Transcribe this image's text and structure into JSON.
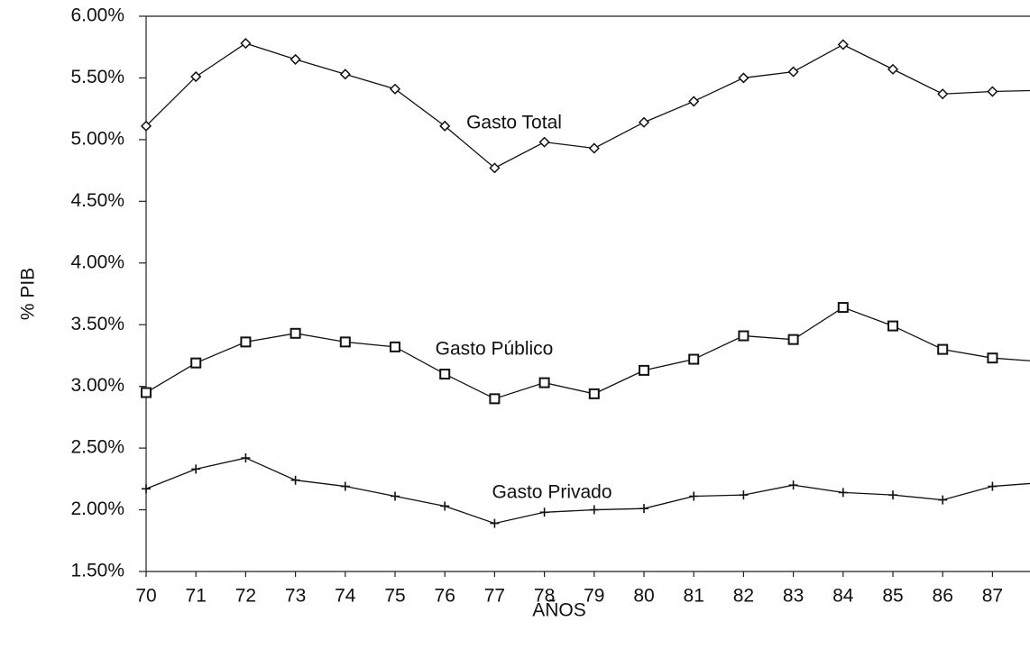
{
  "chart_data": {
    "type": "line",
    "x_label": "AÑOS",
    "y_label": "% PIB",
    "categories": [
      "70",
      "71",
      "72",
      "73",
      "74",
      "75",
      "76",
      "77",
      "78",
      "79",
      "80",
      "81",
      "82",
      "83",
      "84",
      "85",
      "86",
      "87",
      null
    ],
    "series": [
      {
        "name": "Gasto Total",
        "color": "#111111",
        "marker": "diamond",
        "values": [
          5.11,
          5.51,
          5.78,
          5.65,
          5.53,
          5.41,
          5.11,
          4.77,
          4.98,
          4.93,
          5.14,
          5.31,
          5.5,
          5.55,
          5.77,
          5.57,
          5.37,
          5.39,
          5.4
        ]
      },
      {
        "name": "Gasto Público",
        "color": "#111111",
        "marker": "square",
        "values": [
          2.95,
          3.19,
          3.36,
          3.43,
          3.36,
          3.32,
          3.1,
          2.9,
          3.03,
          2.94,
          3.13,
          3.22,
          3.41,
          3.38,
          3.64,
          3.49,
          3.3,
          3.23,
          3.2
        ]
      },
      {
        "name": "Gasto Privado",
        "color": "#111111",
        "marker": "plus",
        "values": [
          2.17,
          2.33,
          2.42,
          2.24,
          2.19,
          2.11,
          2.03,
          1.89,
          1.98,
          2.0,
          2.01,
          2.11,
          2.12,
          2.2,
          2.14,
          2.12,
          2.08,
          2.19,
          2.22
        ]
      }
    ],
    "ylim": [
      1.5,
      6.0
    ],
    "yticks": [
      {
        "value": 1.5,
        "label": "1.50%"
      },
      {
        "value": 2.0,
        "label": "2.00%"
      },
      {
        "value": 2.5,
        "label": "2.50%"
      },
      {
        "value": 3.0,
        "label": "3.00%"
      },
      {
        "value": 3.5,
        "label": "3.50%"
      },
      {
        "value": 4.0,
        "label": "4.00%"
      },
      {
        "value": 4.5,
        "label": "4.50%"
      },
      {
        "value": 5.0,
        "label": "5.00%"
      },
      {
        "value": 5.5,
        "label": "5.50%"
      },
      {
        "value": 6.0,
        "label": "6.00%"
      }
    ],
    "grid": false
  }
}
